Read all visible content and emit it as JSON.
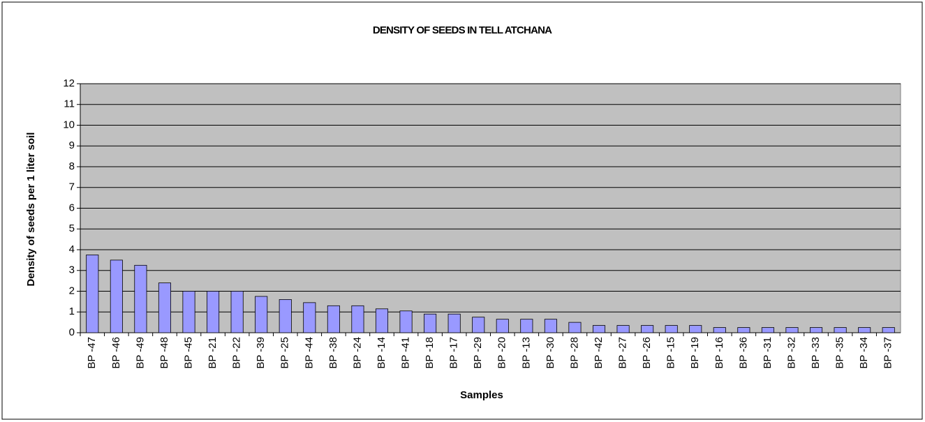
{
  "chart_data": {
    "type": "bar",
    "title": "DENSITY OF SEEDS IN TELL ATCHANA",
    "x_label": "Samples",
    "y_label": "Density of seeds per 1 liter soil",
    "categories": [
      "BP -47",
      "BP -46",
      "BP -49",
      "BP -48",
      "BP -45",
      "BP -21",
      "BP -22",
      "BP -39",
      "BP -25",
      "BP -44",
      "BP -38",
      "BP -24",
      "BP -14",
      "BP -41",
      "BP -18",
      "BP -17",
      "BP -29",
      "BP -20",
      "BP -13",
      "BP -30",
      "BP -28",
      "BP -42",
      "BP -27",
      "BP -26",
      "BP -15",
      "BP -19",
      "BP -16",
      "BP -36",
      "BP -31",
      "BP -32",
      "BP -33",
      "BP -35",
      "BP -34",
      "BP -37"
    ],
    "values": [
      3.75,
      3.5,
      3.25,
      2.4,
      2,
      2,
      2,
      1.75,
      1.6,
      1.45,
      1.3,
      1.3,
      1.15,
      1.05,
      0.9,
      0.9,
      0.75,
      0.65,
      0.65,
      0.65,
      0.5,
      0.35,
      0.35,
      0.35,
      0.35,
      0.35,
      0.25,
      0.25,
      0.25,
      0.25,
      0.25,
      0.25,
      0.25,
      0.25
    ],
    "color": "#9999ff",
    "plot_background": "#c0c0c0",
    "ylim": [
      0,
      12
    ],
    "yticks": [
      0,
      1,
      2,
      3,
      4,
      5,
      6,
      7,
      8,
      9,
      10,
      11,
      12
    ],
    "grid": true
  }
}
